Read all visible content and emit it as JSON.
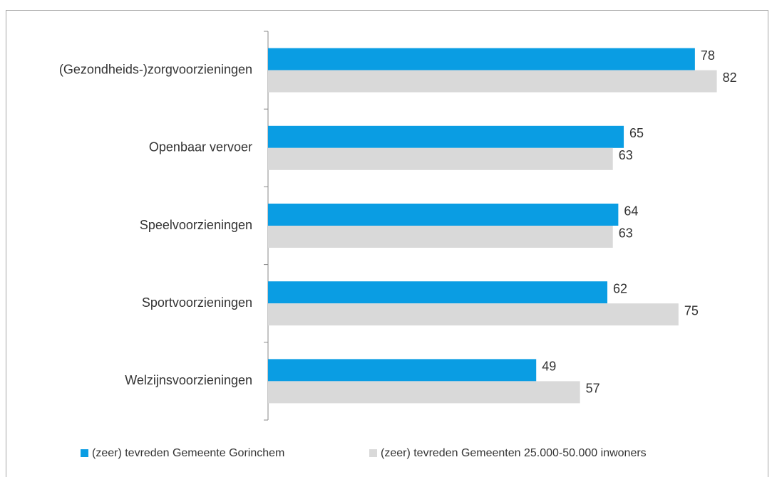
{
  "chart_data": {
    "type": "bar",
    "orientation": "horizontal",
    "categories": [
      "(Gezondheids-)zorgvoorzieningen",
      "Openbaar vervoer",
      "Speelvoorzieningen",
      "Sportvoorzieningen",
      "Welzijnsvoorzieningen"
    ],
    "series": [
      {
        "name": "(zeer) tevreden Gemeente Gorinchem",
        "color": "#0a9de3",
        "values": [
          78,
          65,
          64,
          62,
          49
        ]
      },
      {
        "name": "(zeer) tevreden Gemeenten 25.000-50.000 inwoners",
        "color": "#d9d9d9",
        "values": [
          82,
          63,
          63,
          75,
          57
        ]
      }
    ],
    "xlim": [
      0,
      90
    ],
    "legend": "bottom"
  }
}
